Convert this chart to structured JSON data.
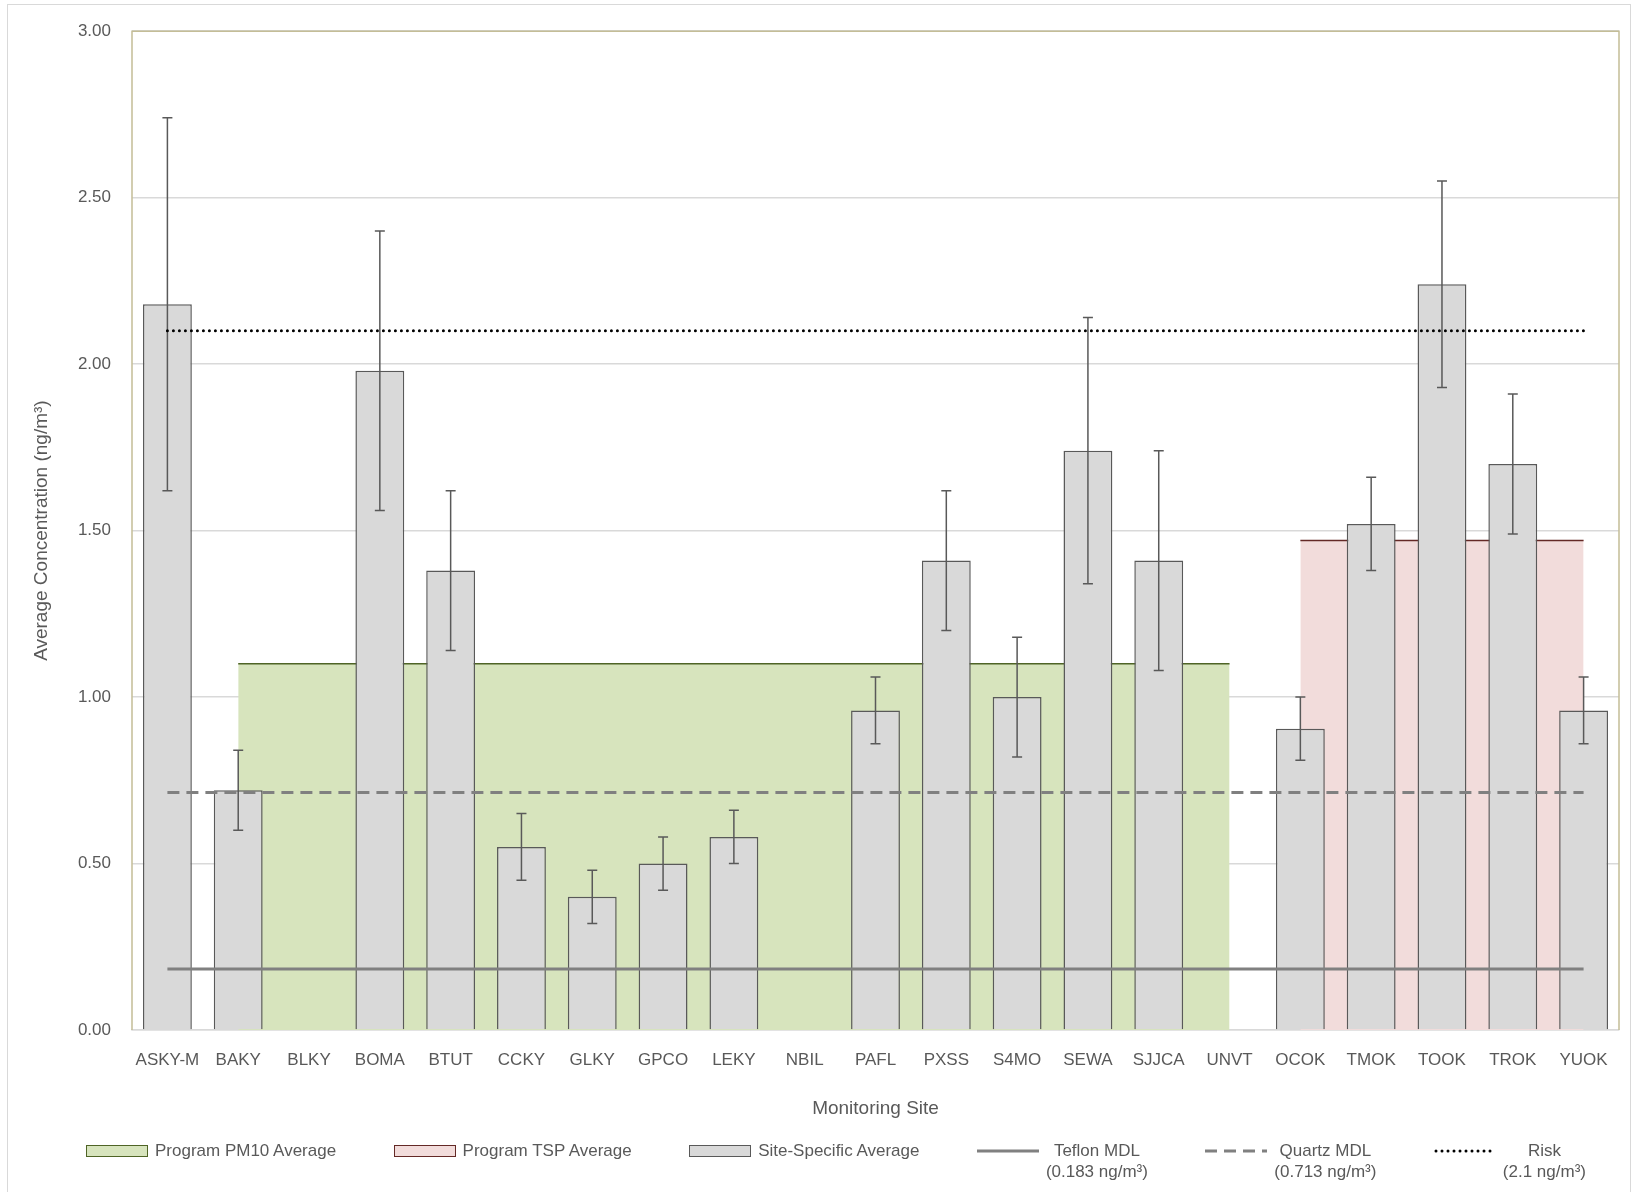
{
  "chart_data": {
    "type": "bar",
    "xlabel": "Monitoring Site",
    "ylabel": "Average Concentration (ng/m³)",
    "categories": [
      "ASKY-M",
      "BAKY",
      "BLKY",
      "BOMA",
      "BTUT",
      "CCKY",
      "GLKY",
      "GPCO",
      "LEKY",
      "NBIL",
      "PAFL",
      "PXSS",
      "S4MO",
      "SEWA",
      "SJJCA",
      "UNVT",
      "OCOK",
      "TMOK",
      "TOOK",
      "TROK",
      "YUOK"
    ],
    "series": [
      {
        "name": "Program PM10 Average",
        "type": "area",
        "color": "#d7e4bd",
        "values": [
          null,
          1.1,
          1.1,
          null,
          null,
          1.1,
          1.1,
          1.1,
          1.1,
          1.1,
          1.1,
          null,
          1.1,
          null,
          null,
          1.1,
          null,
          null,
          null,
          null,
          null
        ]
      },
      {
        "name": "Program TSP Average",
        "type": "area",
        "color": "#f2dcdb",
        "values": [
          null,
          null,
          null,
          null,
          null,
          null,
          null,
          null,
          null,
          null,
          null,
          null,
          null,
          null,
          null,
          null,
          1.47,
          null,
          null,
          null,
          1.47
        ]
      },
      {
        "name": "Site-Specific Average",
        "color": "#d9d9d9",
        "values": [
          2.18,
          0.72,
          null,
          1.98,
          1.38,
          0.55,
          0.4,
          0.5,
          0.58,
          null,
          0.96,
          1.41,
          1.0,
          1.74,
          1.41,
          null,
          0.905,
          1.52,
          2.24,
          1.7,
          0.96
        ],
        "errors": [
          0.56,
          0.12,
          null,
          0.42,
          0.24,
          0.1,
          0.08,
          0.08,
          0.08,
          null,
          0.1,
          0.21,
          0.18,
          0.4,
          0.33,
          null,
          0.095,
          0.14,
          0.31,
          0.21,
          0.1
        ]
      },
      {
        "name": "Teflon MDL\n(0.183 ng/m³)",
        "type": "line",
        "color": "#808080",
        "line_style": "solid",
        "values": [
          0.183,
          0.183,
          0.183,
          0.183,
          0.183,
          0.183,
          0.183,
          0.183,
          0.183,
          0.183,
          0.183,
          0.183,
          0.183,
          0.183,
          0.183,
          0.183,
          0.183,
          0.183,
          0.183,
          0.183,
          0.183
        ]
      },
      {
        "name": "Quartz MDL\n(0.713 ng/m³)",
        "type": "line",
        "color": "#808080",
        "line_style": "dashed",
        "values": [
          0.713,
          0.713,
          0.713,
          0.713,
          0.713,
          0.713,
          0.713,
          0.713,
          0.713,
          0.713,
          0.713,
          0.713,
          0.713,
          0.713,
          0.713,
          0.713,
          0.713,
          0.713,
          0.713,
          0.713,
          0.713
        ]
      },
      {
        "name": "Risk\n(2.1 ng/m³)",
        "type": "line",
        "color": "#000000",
        "line_style": "dotted",
        "values": [
          2.1,
          2.1,
          2.1,
          2.1,
          2.1,
          2.1,
          2.1,
          2.1,
          2.1,
          2.1,
          2.1,
          2.1,
          2.1,
          2.1,
          2.1,
          2.1,
          2.1,
          2.1,
          2.1,
          2.1,
          2.1
        ]
      }
    ],
    "ylim": [
      0,
      3
    ],
    "yticks": [
      {
        "value": 0,
        "label": "0.00"
      },
      {
        "value": 0.5,
        "label": "0.50"
      },
      {
        "value": 1,
        "label": "1.00"
      },
      {
        "value": 1.5,
        "label": "1.50"
      },
      {
        "value": 2,
        "label": "2.00"
      },
      {
        "value": 2.5,
        "label": "2.50"
      },
      {
        "value": 3,
        "label": "3.00"
      }
    ],
    "grid": "y",
    "legend": "bottom"
  }
}
